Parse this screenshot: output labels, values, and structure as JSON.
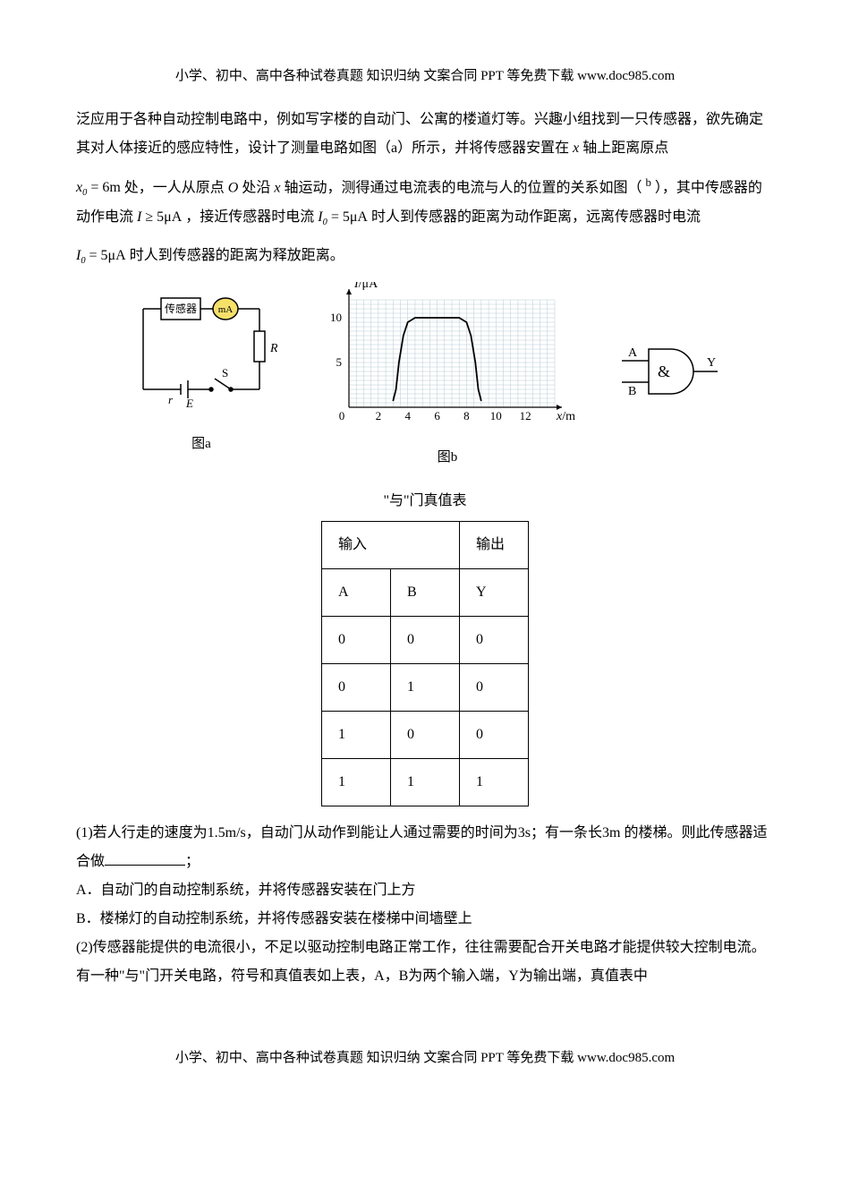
{
  "header_text": "小学、初中、高中各种试卷真题 知识归纳 文案合同 PPT 等免费下载  www.doc985.com",
  "footer_text": "小学、初中、高中各种试卷真题 知识归纳 文案合同 PPT 等免费下载  www.doc985.com",
  "body": {
    "p1a": "泛应用于各种自动控制电路中，例如写字楼的自动门、公寓的楼道灯等。兴趣小组找到一只传感器，欲先确定其对人体接近的感应特性，设计了测量电路如图（a）所示，并将传感器安置在",
    "p1b": "轴上距离原点",
    "p2a": "处，一人从原点",
    "p2b": "处沿",
    "p2c": "轴运动，测得通过电流表的电流与人的位置的关系如图（",
    "p2d": "），其中传感器的动作电流",
    "p2e": "，接近传感器时电流",
    "p2f": "时人到传感器的距离为动作距离，远离传感器时电流",
    "p3a": "时人到传感器的距离为释放距离。",
    "q1_prefix": "(1)若人行走的速度为1.5m/s，自动门从动作到能让人通过需要的时间为3s；有一条长3m 的楼梯。则此传感器适合做",
    "q1_suffix": "；",
    "optA": "A．自动门的自动控制系统，并将传感器安装在门上方",
    "optB": "B．楼梯灯的自动控制系统，并将传感器安装在楼梯中间墙壁上",
    "q2": "(2)传感器能提供的电流很小，不足以驱动控制电路正常工作，往往需要配合开关电路才能提供较大控制电流。有一种\"与\"门开关电路，符号和真值表如上表，A，B为两个输入端，Y为输出端，真值表中"
  },
  "math": {
    "xvar": "x",
    "x0_expr_a": "x",
    "x0_expr_b": "= 6m",
    "Ovar": "O",
    "b_sup": "b",
    "I_ge_a": "I",
    "I_ge_b": "≥ 5μA",
    "I0_eq_a": "I",
    "I0_eq_b": "= 5μA"
  },
  "figureA": {
    "caption": "图a",
    "labels": {
      "sensor": "传感器",
      "mA": "mA",
      "R0": "R",
      "S": "S",
      "r": "r",
      "E": "E"
    },
    "colors": {
      "stroke": "#000000",
      "meter_fill": "#f5e06a"
    }
  },
  "figureB": {
    "caption": "图b",
    "ylabel_a": "I",
    "ylabel_b": "/μA",
    "xlabel_a": "x",
    "xlabel_b": "/m",
    "xlim": [
      0,
      14
    ],
    "ylim": [
      0,
      12
    ],
    "xticks": [
      0,
      2,
      4,
      6,
      8,
      10,
      12
    ],
    "yticks": [
      5,
      10
    ],
    "grid_color": "#b7c9d6",
    "grid_count_x": 28,
    "grid_count_y": 24,
    "axis_color": "#000000",
    "curve_color": "#000000",
    "curve": [
      [
        3.0,
        0.7
      ],
      [
        3.2,
        2.0
      ],
      [
        3.4,
        5.0
      ],
      [
        3.7,
        8.0
      ],
      [
        4.0,
        9.5
      ],
      [
        4.5,
        10.0
      ],
      [
        5.0,
        10.0
      ],
      [
        6.0,
        10.0
      ],
      [
        7.0,
        10.0
      ],
      [
        7.5,
        10.0
      ],
      [
        8.0,
        9.5
      ],
      [
        8.3,
        8.0
      ],
      [
        8.6,
        5.0
      ],
      [
        8.8,
        2.0
      ],
      [
        9.0,
        0.7
      ]
    ],
    "curve_width": 1.8
  },
  "gate": {
    "A": "A",
    "B": "B",
    "Y": "Y",
    "symbol": "&",
    "stroke": "#000000"
  },
  "truth": {
    "title": "\"与\"门真值表",
    "h_in": "输入",
    "h_out": "输出",
    "colA": "A",
    "colB": "B",
    "colY": "Y",
    "rows": [
      [
        "0",
        "0",
        "0"
      ],
      [
        "0",
        "1",
        "0"
      ],
      [
        "1",
        "0",
        "0"
      ],
      [
        "1",
        "1",
        "1"
      ]
    ]
  }
}
